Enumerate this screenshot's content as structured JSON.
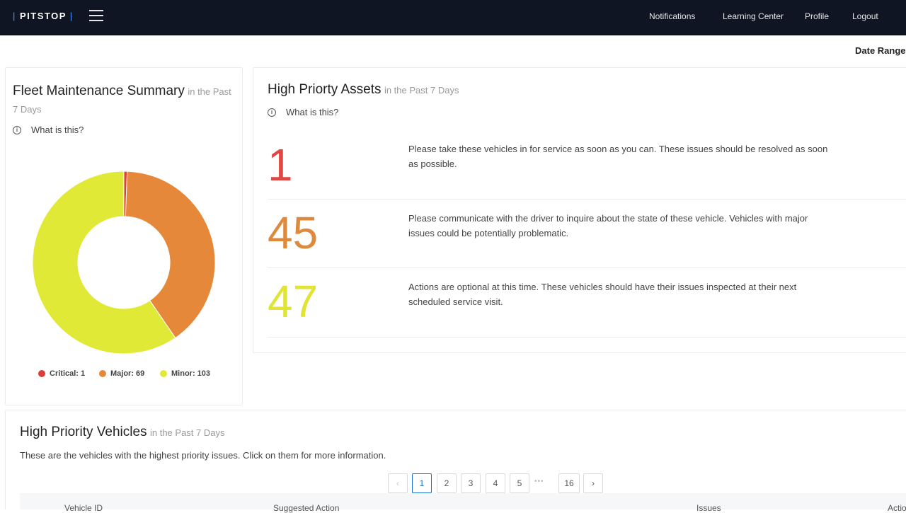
{
  "brand": {
    "logo_text": "PITSTOP"
  },
  "nav": {
    "notifications": "Notifications",
    "learning_center": "Learning Center",
    "profile": "Profile",
    "logout": "Logout"
  },
  "date_range_label": "Date Range:",
  "fleet_summary": {
    "title": "Fleet Maintenance Summary",
    "subtitle": "in the Past 7 Days",
    "help": "What is this?",
    "chart_data": {
      "type": "pie",
      "categories": [
        "Critical",
        "Major",
        "Minor"
      ],
      "values": [
        1,
        69,
        103
      ],
      "colors": [
        "#d9403b",
        "#e6883a",
        "#e1e937"
      ]
    },
    "legend": [
      {
        "label": "Critical: 1",
        "color": "#d9403b"
      },
      {
        "label": "Major: 69",
        "color": "#e6883a"
      },
      {
        "label": "Minor: 103",
        "color": "#e1e937"
      }
    ]
  },
  "priority_assets": {
    "title": "High Priorty Assets",
    "subtitle": "in the Past 7 Days",
    "help": "What is this?",
    "rows": [
      {
        "count": "1",
        "color": "#e04843",
        "text": "Please take these vehicles in for service as soon as you can. These issues should be resolved as soon as possible."
      },
      {
        "count": "45",
        "color": "#dd8a3f",
        "text": "Please communicate with the driver to inquire about the state of these vehicle. Vehicles with major issues could be potentially problematic."
      },
      {
        "count": "47",
        "color": "#dfe435",
        "text": "Actions are optional at this time. These vehicles should have their issues inspected at their next scheduled service visit."
      }
    ]
  },
  "priority_vehicles": {
    "title": "High Priority Vehicles",
    "subtitle": "in the Past 7 Days",
    "description": "These are the vehicles with the highest priority issues. Click on them for more information.",
    "pagination": {
      "prev": "‹",
      "pages": [
        "1",
        "2",
        "3",
        "4",
        "5"
      ],
      "ellipsis": "•••",
      "last": "16",
      "next": "›",
      "current": "1"
    },
    "columns": [
      "Vehicle ID",
      "Suggested Action",
      "Issues",
      "Actio"
    ]
  }
}
